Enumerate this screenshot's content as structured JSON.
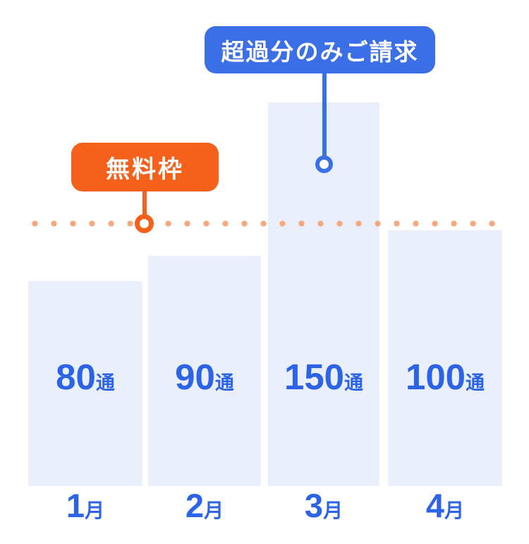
{
  "chart_data": {
    "type": "bar",
    "title": "",
    "categories": [
      "1月",
      "2月",
      "3月",
      "4月"
    ],
    "values": [
      80,
      90,
      150,
      100
    ],
    "unit": "通",
    "bar_labels": [
      "80通",
      "90通",
      "150通",
      "100通"
    ],
    "ylim": [
      0,
      160
    ],
    "grid": false,
    "legend": false,
    "free_quota_line": {
      "label": "無料枠",
      "style": "dotted",
      "approx_value": 103,
      "color": "#F9A87E"
    },
    "annotations": [
      {
        "label": "無料枠",
        "color": "#F5611B",
        "text_color": "#FFFFFF",
        "points_to": "free-quota-line"
      },
      {
        "label": "超過分のみご請求",
        "color": "#3B6FE8",
        "text_color": "#FFFFFF",
        "points_to": "march-bar-overage"
      }
    ]
  },
  "colors": {
    "background": "#FFFFFF",
    "bar_fill": "#E9F0FB",
    "label_text": "#2D63E6",
    "accent_blue": "#3B6FE8",
    "accent_orange": "#F5611B",
    "dotted_line": "#F9A87E",
    "callout_text": "#FFFFFF"
  }
}
